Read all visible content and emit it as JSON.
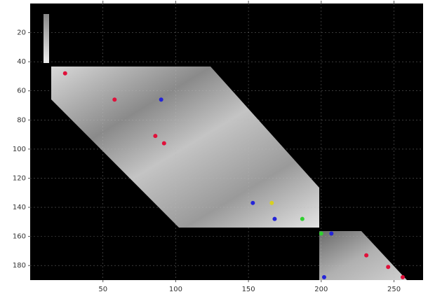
{
  "chart_data": {
    "type": "scatter",
    "xlim": [
      0,
      270
    ],
    "ylim": [
      0,
      190
    ],
    "y_inverted": true,
    "xticks": [
      50,
      100,
      150,
      200,
      250
    ],
    "yticks": [
      20,
      40,
      60,
      80,
      100,
      120,
      140,
      160,
      180
    ],
    "grid": true,
    "background": "#000000",
    "series": [
      {
        "color": "#e0103a",
        "x": [
          24,
          58,
          86,
          92,
          231,
          246,
          256
        ],
        "y": [
          48,
          66,
          91,
          96,
          173,
          181,
          188
        ]
      },
      {
        "color": "#2424d8",
        "x": [
          90,
          153,
          168,
          207,
          202
        ],
        "y": [
          66,
          137,
          148,
          158,
          188
        ]
      },
      {
        "color": "#30d030",
        "x": [
          187,
          200
        ],
        "y": [
          148,
          158
        ]
      },
      {
        "color": "#d8d020",
        "x": [
          166
        ],
        "y": [
          137
        ]
      }
    ]
  }
}
